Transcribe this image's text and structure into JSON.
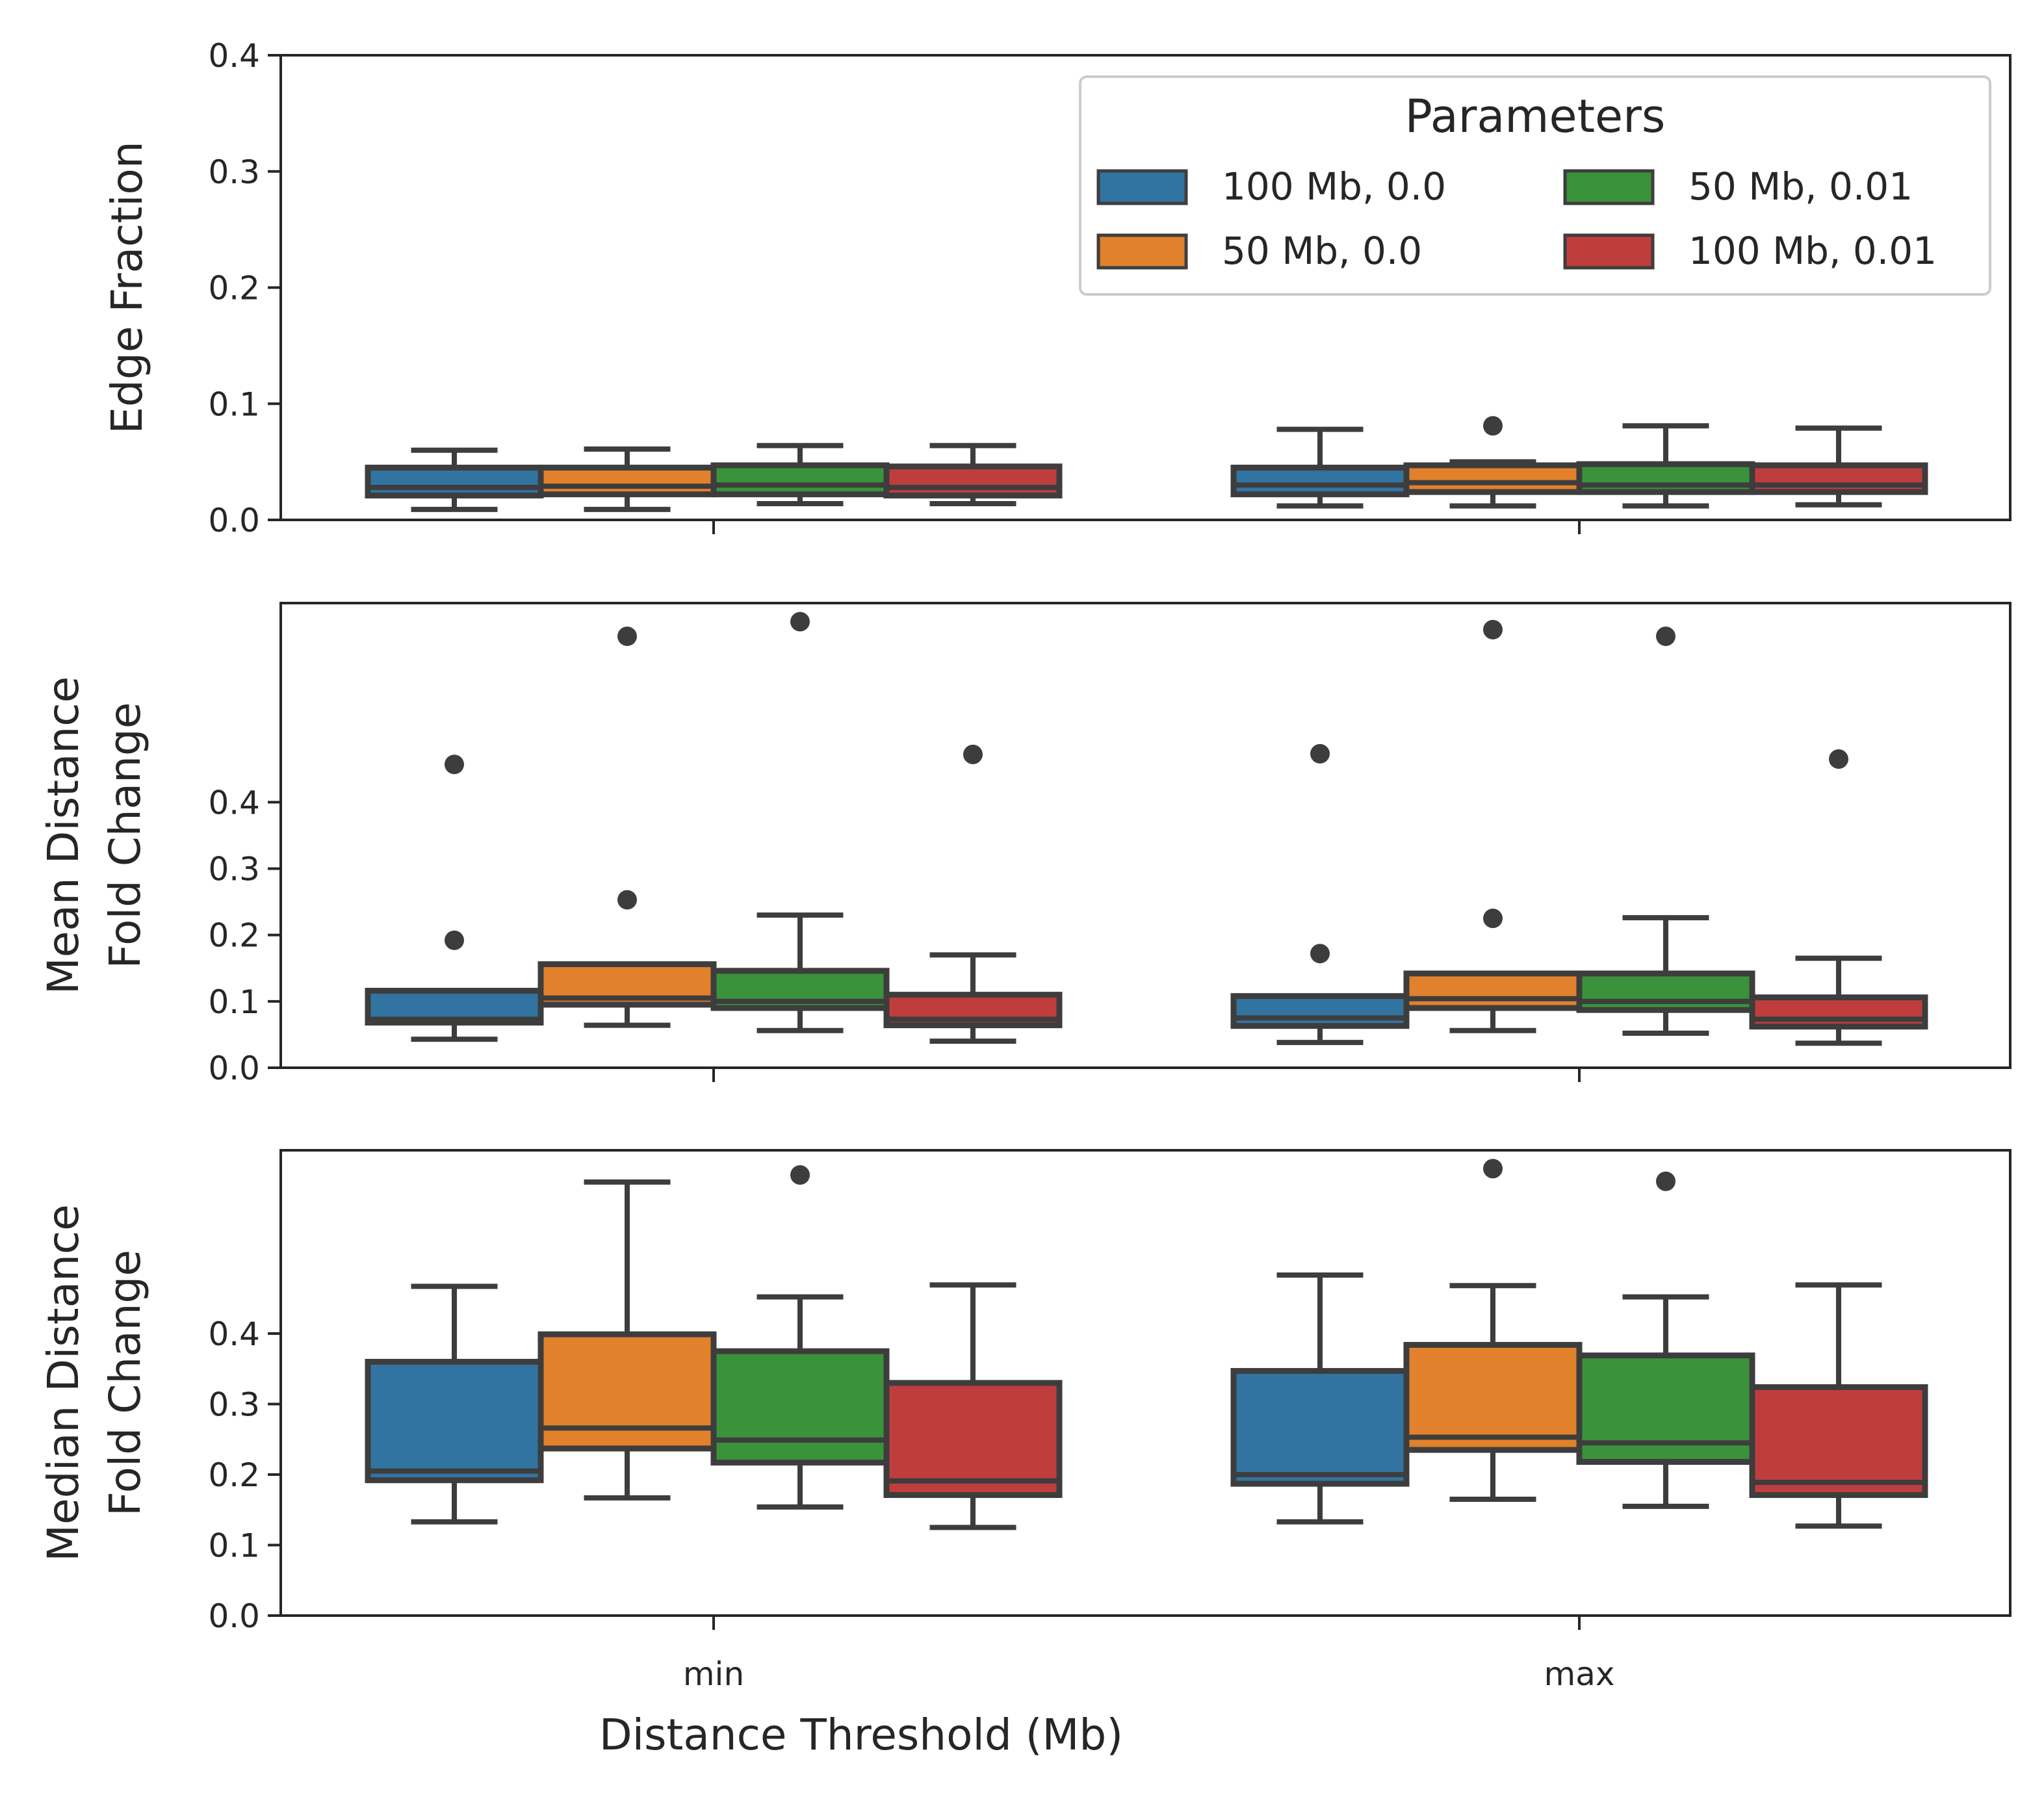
{
  "figure": {
    "xlabel": "Distance Threshold (Mb)",
    "categories": [
      "min",
      "max"
    ]
  },
  "legend": {
    "title": "Parameters",
    "entries": [
      {
        "label": "100 Mb, 0.0",
        "color": "#3274a1"
      },
      {
        "label": "50 Mb, 0.0",
        "color": "#e1812c"
      },
      {
        "label": "50 Mb, 0.01",
        "color": "#3a923a"
      },
      {
        "label": "100 Mb, 0.01",
        "color": "#c03d3e"
      }
    ]
  },
  "chart_data": [
    {
      "type": "box",
      "ylabel": [
        "Edge Fraction"
      ],
      "ylim": [
        0,
        0.4
      ],
      "yticks": [
        "0.0",
        "0.1",
        "0.2",
        "0.3",
        "0.4"
      ],
      "categories": [
        "min",
        "max"
      ],
      "series": [
        {
          "name": "100 Mb, 0.0",
          "boxes": [
            {
              "whislo": 0.009,
              "q1": 0.021,
              "med": 0.028,
              "q3": 0.045,
              "whishi": 0.06,
              "fliers": []
            },
            {
              "whislo": 0.012,
              "q1": 0.022,
              "med": 0.03,
              "q3": 0.045,
              "whishi": 0.078,
              "fliers": []
            }
          ]
        },
        {
          "name": "50 Mb, 0.0",
          "boxes": [
            {
              "whislo": 0.009,
              "q1": 0.022,
              "med": 0.029,
              "q3": 0.045,
              "whishi": 0.061,
              "fliers": []
            },
            {
              "whislo": 0.012,
              "q1": 0.024,
              "med": 0.032,
              "q3": 0.047,
              "whishi": 0.05,
              "fliers": [
                0.081
              ]
            }
          ]
        },
        {
          "name": "50 Mb, 0.01",
          "boxes": [
            {
              "whislo": 0.014,
              "q1": 0.022,
              "med": 0.03,
              "q3": 0.047,
              "whishi": 0.064,
              "fliers": []
            },
            {
              "whislo": 0.012,
              "q1": 0.024,
              "med": 0.03,
              "q3": 0.048,
              "whishi": 0.081,
              "fliers": []
            }
          ]
        },
        {
          "name": "100 Mb, 0.01",
          "boxes": [
            {
              "whislo": 0.014,
              "q1": 0.021,
              "med": 0.028,
              "q3": 0.046,
              "whishi": 0.064,
              "fliers": []
            },
            {
              "whislo": 0.013,
              "q1": 0.024,
              "med": 0.03,
              "q3": 0.047,
              "whishi": 0.079,
              "fliers": []
            }
          ]
        }
      ]
    },
    {
      "type": "box",
      "ylabel": [
        "Mean Distance",
        "Fold Change"
      ],
      "ylim": [
        0,
        0.7
      ],
      "yticks": [
        "0.0",
        "0.1",
        "0.2",
        "0.3",
        "0.4"
      ],
      "categories": [
        "min",
        "max"
      ],
      "series": [
        {
          "name": "100 Mb, 0.0",
          "boxes": [
            {
              "whislo": 0.043,
              "q1": 0.068,
              "med": 0.073,
              "q3": 0.116,
              "whishi": 0.116,
              "fliers": [
                0.192,
                0.457
              ]
            },
            {
              "whislo": 0.038,
              "q1": 0.063,
              "med": 0.075,
              "q3": 0.108,
              "whishi": 0.108,
              "fliers": [
                0.172,
                0.473
              ]
            }
          ]
        },
        {
          "name": "50 Mb, 0.0",
          "boxes": [
            {
              "whislo": 0.064,
              "q1": 0.095,
              "med": 0.105,
              "q3": 0.156,
              "whishi": 0.156,
              "fliers": [
                0.253,
                0.65
              ]
            },
            {
              "whislo": 0.056,
              "q1": 0.09,
              "med": 0.104,
              "q3": 0.142,
              "whishi": 0.142,
              "fliers": [
                0.225,
                0.66
              ]
            }
          ]
        },
        {
          "name": "50 Mb, 0.01",
          "boxes": [
            {
              "whislo": 0.056,
              "q1": 0.09,
              "med": 0.1,
              "q3": 0.146,
              "whishi": 0.23,
              "fliers": [
                0.672
              ]
            },
            {
              "whislo": 0.052,
              "q1": 0.087,
              "med": 0.1,
              "q3": 0.142,
              "whishi": 0.226,
              "fliers": [
                0.65
              ]
            }
          ]
        },
        {
          "name": "100 Mb, 0.01",
          "boxes": [
            {
              "whislo": 0.04,
              "q1": 0.064,
              "med": 0.073,
              "q3": 0.11,
              "whishi": 0.17,
              "fliers": [
                0.472
              ]
            },
            {
              "whislo": 0.037,
              "q1": 0.062,
              "med": 0.073,
              "q3": 0.106,
              "whishi": 0.165,
              "fliers": [
                0.465
              ]
            }
          ]
        }
      ]
    },
    {
      "type": "box",
      "ylabel": [
        "Median Distance",
        "Fold Change"
      ],
      "ylim": [
        0,
        0.66
      ],
      "yticks": [
        "0.0",
        "0.1",
        "0.2",
        "0.3",
        "0.4"
      ],
      "categories": [
        "min",
        "max"
      ],
      "series": [
        {
          "name": "100 Mb, 0.0",
          "boxes": [
            {
              "whislo": 0.133,
              "q1": 0.192,
              "med": 0.205,
              "q3": 0.36,
              "whishi": 0.467,
              "fliers": []
            },
            {
              "whislo": 0.133,
              "q1": 0.187,
              "med": 0.2,
              "q3": 0.347,
              "whishi": 0.483,
              "fliers": []
            }
          ]
        },
        {
          "name": "50 Mb, 0.0",
          "boxes": [
            {
              "whislo": 0.167,
              "q1": 0.237,
              "med": 0.266,
              "q3": 0.399,
              "whishi": 0.615,
              "fliers": []
            },
            {
              "whislo": 0.165,
              "q1": 0.235,
              "med": 0.253,
              "q3": 0.384,
              "whishi": 0.468,
              "fliers": [
                0.634
              ]
            }
          ]
        },
        {
          "name": "50 Mb, 0.01",
          "boxes": [
            {
              "whislo": 0.154,
              "q1": 0.217,
              "med": 0.249,
              "q3": 0.375,
              "whishi": 0.452,
              "fliers": [
                0.625
              ]
            },
            {
              "whislo": 0.155,
              "q1": 0.218,
              "med": 0.245,
              "q3": 0.369,
              "whishi": 0.452,
              "fliers": [
                0.616
              ]
            }
          ]
        },
        {
          "name": "100 Mb, 0.01",
          "boxes": [
            {
              "whislo": 0.125,
              "q1": 0.171,
              "med": 0.191,
              "q3": 0.33,
              "whishi": 0.469,
              "fliers": []
            },
            {
              "whislo": 0.127,
              "q1": 0.171,
              "med": 0.189,
              "q3": 0.324,
              "whishi": 0.469,
              "fliers": []
            }
          ]
        }
      ]
    }
  ]
}
